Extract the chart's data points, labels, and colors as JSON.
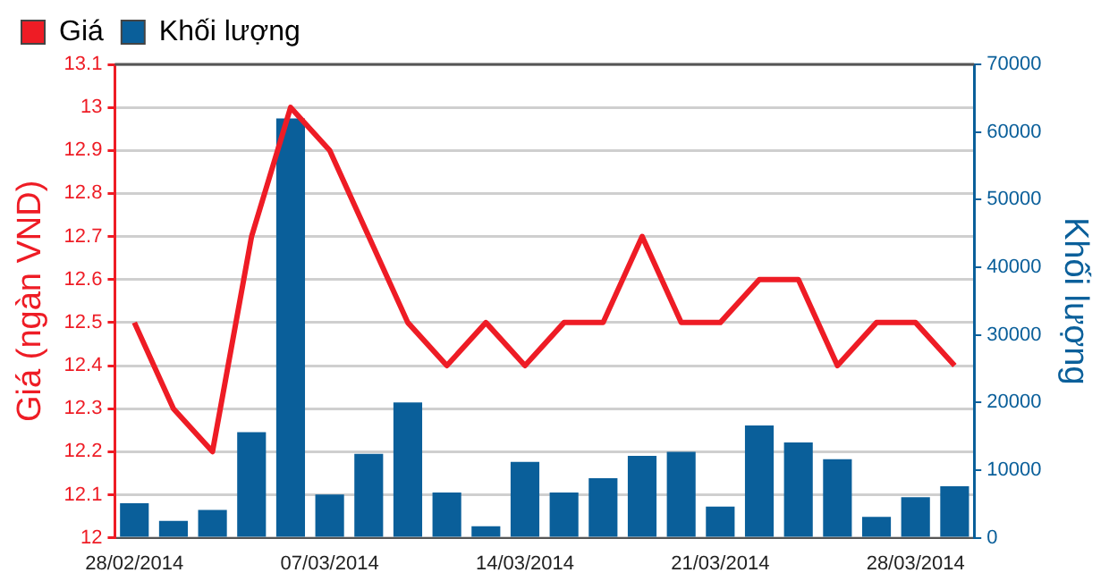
{
  "chart_data": {
    "type": "bar",
    "ylabel": "Giá (ngàn VND)",
    "y2label": "Khối lượng",
    "categories": [
      "28/02/2014",
      null,
      null,
      null,
      null,
      "07/03/2014",
      null,
      null,
      null,
      null,
      "14/03/2014",
      null,
      null,
      null,
      null,
      "21/03/2014",
      null,
      null,
      null,
      null,
      "28/03/2014",
      null
    ],
    "series": [
      {
        "name": "Giá",
        "type": "line",
        "color": "#ee1c25",
        "values": [
          12.5,
          12.3,
          12.2,
          12.7,
          13.0,
          12.9,
          12.7,
          12.5,
          12.4,
          12.5,
          12.4,
          12.5,
          12.5,
          12.7,
          12.5,
          12.5,
          12.6,
          12.6,
          12.4,
          12.5,
          12.5,
          12.4
        ]
      },
      {
        "name": "Khối lượng",
        "axis": "y2",
        "color": "#0a5f9a",
        "values": [
          5100,
          2500,
          4100,
          15600,
          62000,
          6400,
          12400,
          20000,
          6700,
          1700,
          11200,
          6700,
          8800,
          12100,
          12700,
          4600,
          16600,
          14100,
          11600,
          3100,
          6000,
          7600
        ]
      }
    ],
    "ylim": [
      12,
      13.1
    ],
    "yticks": [
      12,
      12.1,
      12.2,
      12.3,
      12.4,
      12.5,
      12.6,
      12.7,
      12.8,
      12.9,
      13,
      13.1
    ],
    "y2lim": [
      0,
      70000
    ],
    "y2ticks": [
      0,
      10000,
      20000,
      30000,
      40000,
      50000,
      60000,
      70000
    ],
    "grid": "y",
    "legend": "top left",
    "marker": "none",
    "line_style": "solid"
  }
}
